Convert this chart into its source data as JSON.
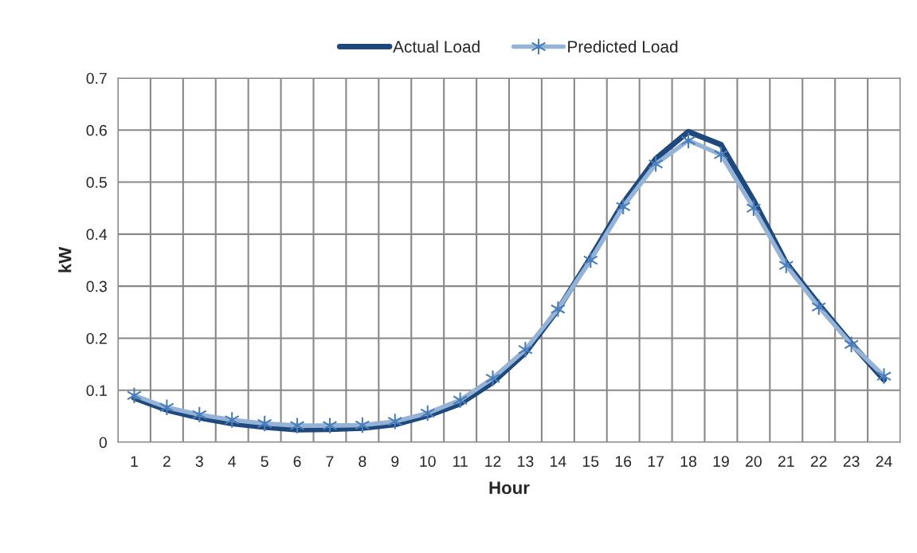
{
  "chart_data": {
    "type": "line",
    "xlabel": "Hour",
    "ylabel": "kW",
    "categories": [
      "1",
      "2",
      "3",
      "4",
      "5",
      "6",
      "7",
      "8",
      "9",
      "10",
      "11",
      "12",
      "13",
      "14",
      "15",
      "16",
      "17",
      "18",
      "19",
      "20",
      "21",
      "22",
      "23",
      "24"
    ],
    "series": [
      {
        "name": "Actual Load",
        "color": "#1f497d",
        "marker": "none",
        "values": [
          0.085,
          0.062,
          0.047,
          0.036,
          0.029,
          0.024,
          0.025,
          0.027,
          0.034,
          0.051,
          0.074,
          0.115,
          0.172,
          0.255,
          0.355,
          0.46,
          0.545,
          0.597,
          0.572,
          0.465,
          0.345,
          0.265,
          0.19,
          0.12
        ]
      },
      {
        "name": "Predicted Load",
        "color": "#95b3d7",
        "marker": "cross",
        "values": [
          0.09,
          0.067,
          0.053,
          0.043,
          0.036,
          0.032,
          0.032,
          0.033,
          0.04,
          0.056,
          0.081,
          0.123,
          0.178,
          0.256,
          0.35,
          0.453,
          0.535,
          0.58,
          0.553,
          0.45,
          0.34,
          0.26,
          0.188,
          0.127
        ]
      }
    ],
    "ylim": [
      0,
      0.7
    ],
    "yticks": [
      0,
      0.1,
      0.2,
      0.3,
      0.4,
      0.5,
      0.6,
      0.7
    ],
    "grid": true,
    "legend": "top",
    "line_style": "solid"
  }
}
